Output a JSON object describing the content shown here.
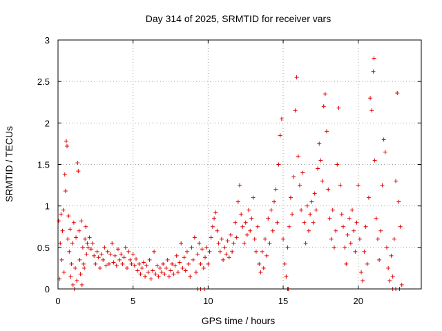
{
  "chart_data": {
    "type": "scatter",
    "title": "Day 314 of 2025, SRMTID for receiver vars",
    "xlabel": "GPS time / hours",
    "ylabel": "SRMTID / TECUs",
    "xlim": [
      0,
      24.2
    ],
    "ylim": [
      0,
      3
    ],
    "xticks": [
      "0",
      "5",
      "10",
      "15",
      "20"
    ],
    "xtick_values": [
      0,
      5,
      10,
      15,
      20
    ],
    "yticks": [
      "0",
      "0.5",
      "1",
      "1.5",
      "2",
      "2.5",
      "3"
    ],
    "ytick_values": [
      0,
      0.5,
      1,
      1.5,
      2,
      2.5,
      3
    ],
    "grid": true,
    "marker": "+",
    "color": "#e00000",
    "series": [
      {
        "name": "SRMTID",
        "points": [
          [
            0.05,
            0.82
          ],
          [
            0.1,
            0.12
          ],
          [
            0.15,
            0.55
          ],
          [
            0.2,
            0.9
          ],
          [
            0.25,
            0.35
          ],
          [
            0.3,
            0.7
          ],
          [
            0.35,
            0.95
          ],
          [
            0.4,
            0.2
          ],
          [
            0.45,
            1.38
          ],
          [
            0.5,
            1.18
          ],
          [
            0.55,
            1.78
          ],
          [
            0.6,
            1.72
          ],
          [
            0.65,
            0.6
          ],
          [
            0.7,
            0.88
          ],
          [
            0.75,
            0.45
          ],
          [
            0.8,
            0.72
          ],
          [
            0.85,
            0.15
          ],
          [
            0.9,
            0.3
          ],
          [
            0.95,
            0.55
          ],
          [
            1.0,
            0.05
          ],
          [
            1.05,
            0.8
          ],
          [
            1.1,
            0.0
          ],
          [
            1.15,
            0.25
          ],
          [
            1.2,
            0.62
          ],
          [
            1.25,
            0.1
          ],
          [
            1.3,
            1.52
          ],
          [
            1.35,
            1.42
          ],
          [
            1.4,
            0.7
          ],
          [
            1.45,
            0.35
          ],
          [
            1.5,
            0.18
          ],
          [
            1.55,
            0.82
          ],
          [
            1.6,
            0.05
          ],
          [
            1.65,
            0.5
          ],
          [
            1.7,
            0.3
          ],
          [
            1.75,
            0.25
          ],
          [
            1.8,
            0.6
          ],
          [
            1.85,
            0.75
          ],
          [
            1.9,
            0.42
          ],
          [
            1.95,
            0.55
          ],
          [
            2.0,
            0.5
          ],
          [
            2.1,
            0.62
          ],
          [
            2.2,
            0.48
          ],
          [
            2.3,
            0.55
          ],
          [
            2.4,
            0.4
          ],
          [
            2.5,
            0.3
          ],
          [
            2.6,
            0.45
          ],
          [
            2.7,
            0.38
          ],
          [
            2.8,
            0.25
          ],
          [
            2.9,
            0.42
          ],
          [
            3.0,
            0.35
          ],
          [
            3.1,
            0.5
          ],
          [
            3.2,
            0.28
          ],
          [
            3.3,
            0.45
          ],
          [
            3.4,
            0.3
          ],
          [
            3.5,
            0.42
          ],
          [
            3.6,
            0.55
          ],
          [
            3.7,
            0.32
          ],
          [
            3.8,
            0.4
          ],
          [
            3.9,
            0.28
          ],
          [
            4.0,
            0.48
          ],
          [
            4.1,
            0.35
          ],
          [
            4.2,
            0.42
          ],
          [
            4.3,
            0.3
          ],
          [
            4.4,
            0.38
          ],
          [
            4.5,
            0.5
          ],
          [
            4.6,
            0.25
          ],
          [
            4.7,
            0.45
          ],
          [
            4.8,
            0.35
          ],
          [
            4.9,
            0.3
          ],
          [
            5.0,
            0.42
          ],
          [
            5.1,
            0.28
          ],
          [
            5.2,
            0.36
          ],
          [
            5.3,
            0.22
          ],
          [
            5.4,
            0.3
          ],
          [
            5.5,
            0.18
          ],
          [
            5.6,
            0.25
          ],
          [
            5.7,
            0.32
          ],
          [
            5.8,
            0.15
          ],
          [
            5.9,
            0.28
          ],
          [
            6.0,
            0.2
          ],
          [
            6.1,
            0.35
          ],
          [
            6.2,
            0.12
          ],
          [
            6.3,
            0.22
          ],
          [
            6.4,
            0.45
          ],
          [
            6.5,
            0.18
          ],
          [
            6.6,
            0.28
          ],
          [
            6.7,
            0.15
          ],
          [
            6.8,
            0.25
          ],
          [
            6.9,
            0.2
          ],
          [
            7.0,
            0.3
          ],
          [
            7.1,
            0.18
          ],
          [
            7.2,
            0.25
          ],
          [
            7.3,
            0.35
          ],
          [
            7.4,
            0.15
          ],
          [
            7.5,
            0.22
          ],
          [
            7.6,
            0.3
          ],
          [
            7.7,
            0.18
          ],
          [
            7.8,
            0.28
          ],
          [
            7.9,
            0.4
          ],
          [
            8.0,
            0.2
          ],
          [
            8.1,
            0.32
          ],
          [
            8.2,
            0.55
          ],
          [
            8.3,
            0.25
          ],
          [
            8.4,
            0.38
          ],
          [
            8.5,
            0.22
          ],
          [
            8.6,
            0.45
          ],
          [
            8.7,
            0.3
          ],
          [
            8.8,
            0.15
          ],
          [
            8.9,
            0.5
          ],
          [
            9.0,
            0.35
          ],
          [
            9.1,
            0.62
          ],
          [
            9.2,
            0.2
          ],
          [
            9.3,
            0.42
          ],
          [
            9.4,
            0.55
          ],
          [
            9.5,
            0.3
          ],
          [
            9.6,
            0.48
          ],
          [
            9.7,
            0.25
          ],
          [
            9.8,
            0.38
          ],
          [
            9.9,
            0.5
          ],
          [
            10.0,
            0.3
          ],
          [
            10.1,
            0.45
          ],
          [
            10.2,
            0.62
          ],
          [
            10.3,
            0.75
          ],
          [
            10.4,
            0.85
          ],
          [
            10.5,
            0.92
          ],
          [
            10.6,
            0.7
          ],
          [
            10.7,
            0.55
          ],
          [
            10.8,
            0.45
          ],
          [
            10.9,
            0.6
          ],
          [
            11.0,
            0.35
          ],
          [
            11.1,
            0.5
          ],
          [
            11.2,
            0.42
          ],
          [
            11.3,
            0.58
          ],
          [
            11.4,
            0.38
          ],
          [
            11.5,
            0.65
          ],
          [
            11.6,
            0.45
          ],
          [
            11.7,
            0.55
          ],
          [
            11.8,
            0.8
          ],
          [
            11.9,
            0.62
          ],
          [
            12.0,
            1.05
          ],
          [
            12.1,
            1.25
          ],
          [
            12.2,
            0.9
          ],
          [
            12.3,
            0.75
          ],
          [
            12.4,
            0.55
          ],
          [
            12.5,
            0.8
          ],
          [
            12.6,
            0.65
          ],
          [
            12.7,
            0.95
          ],
          [
            12.8,
            0.7
          ],
          [
            12.9,
            0.85
          ],
          [
            13.0,
            1.1
          ],
          [
            13.1,
            0.6
          ],
          [
            13.2,
            0.45
          ],
          [
            13.3,
            0.75
          ],
          [
            13.4,
            0.3
          ],
          [
            13.5,
            0.2
          ],
          [
            13.6,
            0.45
          ],
          [
            13.7,
            0.25
          ],
          [
            13.8,
            0.6
          ],
          [
            13.9,
            0.4
          ],
          [
            14.0,
            0.85
          ],
          [
            14.1,
            0.55
          ],
          [
            14.2,
            0.95
          ],
          [
            14.3,
            0.7
          ],
          [
            14.4,
            1.05
          ],
          [
            14.5,
            1.2
          ],
          [
            14.6,
            0.8
          ],
          [
            14.7,
            1.5
          ],
          [
            14.8,
            1.85
          ],
          [
            14.9,
            2.05
          ],
          [
            15.0,
            0.6
          ],
          [
            15.1,
            0.3
          ],
          [
            15.2,
            0.15
          ],
          [
            15.3,
            0.5
          ],
          [
            15.4,
            0.75
          ],
          [
            15.5,
            1.1
          ],
          [
            15.6,
            0.9
          ],
          [
            15.7,
            1.35
          ],
          [
            15.8,
            2.15
          ],
          [
            15.9,
            2.55
          ],
          [
            16.0,
            1.6
          ],
          [
            16.1,
            1.25
          ],
          [
            16.2,
            0.95
          ],
          [
            16.3,
            1.4
          ],
          [
            16.4,
            0.8
          ],
          [
            16.5,
            0.55
          ],
          [
            16.6,
            1.0
          ],
          [
            16.7,
            0.7
          ],
          [
            16.8,
            0.9
          ],
          [
            16.9,
            1.05
          ],
          [
            17.0,
            0.8
          ],
          [
            17.1,
            1.15
          ],
          [
            17.2,
            0.95
          ],
          [
            17.3,
            1.45
          ],
          [
            17.4,
            1.75
          ],
          [
            17.5,
            1.55
          ],
          [
            17.6,
            1.3
          ],
          [
            17.7,
            2.2
          ],
          [
            17.8,
            2.35
          ],
          [
            17.9,
            1.9
          ],
          [
            18.0,
            1.2
          ],
          [
            18.1,
            0.85
          ],
          [
            18.2,
            0.6
          ],
          [
            18.3,
            0.95
          ],
          [
            18.4,
            0.5
          ],
          [
            18.5,
            0.7
          ],
          [
            18.6,
            1.5
          ],
          [
            18.7,
            2.18
          ],
          [
            18.8,
            1.25
          ],
          [
            18.9,
            0.9
          ],
          [
            19.0,
            0.75
          ],
          [
            19.1,
            0.5
          ],
          [
            19.2,
            0.3
          ],
          [
            19.3,
            0.65
          ],
          [
            19.4,
            0.85
          ],
          [
            19.5,
            0.55
          ],
          [
            19.6,
            0.95
          ],
          [
            19.7,
            0.7
          ],
          [
            19.8,
            0.45
          ],
          [
            19.9,
            0.8
          ],
          [
            20.0,
            1.25
          ],
          [
            20.1,
            0.6
          ],
          [
            20.2,
            0.2
          ],
          [
            20.3,
            0.1
          ],
          [
            20.4,
            0.45
          ],
          [
            20.5,
            0.75
          ],
          [
            20.6,
            0.3
          ],
          [
            20.7,
            1.1
          ],
          [
            20.8,
            2.3
          ],
          [
            20.9,
            2.15
          ],
          [
            21.0,
            2.62
          ],
          [
            21.05,
            2.78
          ],
          [
            21.1,
            1.55
          ],
          [
            21.2,
            0.85
          ],
          [
            21.3,
            0.6
          ],
          [
            21.4,
            0.35
          ],
          [
            21.5,
            0.7
          ],
          [
            21.6,
            1.25
          ],
          [
            21.7,
            1.8
          ],
          [
            21.8,
            1.65
          ],
          [
            21.9,
            0.5
          ],
          [
            22.0,
            0.25
          ],
          [
            22.1,
            0.1
          ],
          [
            22.2,
            0.4
          ],
          [
            22.3,
            0.15
          ],
          [
            22.4,
            0.6
          ],
          [
            22.5,
            1.3
          ],
          [
            22.6,
            2.36
          ],
          [
            22.7,
            1.05
          ],
          [
            22.8,
            0.75
          ],
          [
            22.9,
            0.05
          ],
          [
            9.3,
            0.0
          ],
          [
            9.5,
            0.0
          ],
          [
            9.75,
            0.0
          ],
          [
            15.3,
            0.0
          ],
          [
            15.35,
            0.0
          ],
          [
            22.3,
            0.0
          ],
          [
            22.5,
            0.0
          ],
          [
            22.75,
            0.0
          ]
        ]
      }
    ]
  }
}
